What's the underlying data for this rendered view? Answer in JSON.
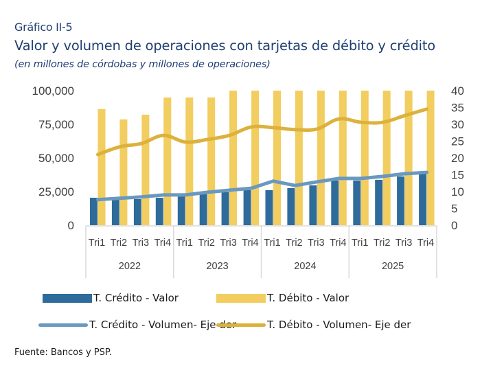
{
  "header": {
    "pretitle": "Gráfico II-5",
    "title": "Valor y volumen de operaciones con tarjetas de débito y crédito",
    "subtitle": "(en millones de córdobas y millones de operaciones)"
  },
  "source": "Fuente: Bancos y PSP.",
  "colors": {
    "credito_valor": "#2e6b9a",
    "debito_valor": "#f2cd5f",
    "credito_volumen": "#6a98bf",
    "debito_volumen": "#dcb13c",
    "title": "#1f3f73"
  },
  "chart_data": {
    "type": "bar",
    "title": "Valor y volumen de operaciones con tarjetas de débito y crédito",
    "subtitle": "(en millones de córdobas y millones de operaciones)",
    "categories": [
      "Tri1",
      "Tri2",
      "Tri3",
      "Tri4",
      "Tri1",
      "Tri2",
      "Tri3",
      "Tri4",
      "Tri1",
      "Tri2",
      "Tri3",
      "Tri4",
      "Tri1",
      "Tri2",
      "Tri3",
      "Tri4"
    ],
    "groups": [
      {
        "label": "2022",
        "count": 4
      },
      {
        "label": "2023",
        "count": 4
      },
      {
        "label": "2024",
        "count": 4
      },
      {
        "label": "2025",
        "count": 4
      }
    ],
    "y_left": {
      "min": 0,
      "max": 100000,
      "ticks": [
        0,
        25000,
        50000,
        75000,
        100000
      ],
      "tick_labels": [
        "0",
        "25,000",
        "50,000",
        "75,000",
        "100,000"
      ]
    },
    "y_right": {
      "min": 0,
      "max": 40,
      "ticks": [
        0,
        5,
        10,
        15,
        20,
        25,
        30,
        35,
        40
      ],
      "tick_labels": [
        "0",
        "5",
        "10",
        "15",
        "20",
        "25",
        "30",
        "35",
        "40"
      ]
    },
    "grid": false,
    "legend_position": "bottom",
    "series": [
      {
        "name": "T. Crédito - Valor",
        "kind": "bar",
        "axis": "left",
        "color_key": "credito_valor",
        "values": [
          20400,
          18900,
          19400,
          20400,
          21400,
          23000,
          24500,
          26000,
          26000,
          27600,
          29600,
          33200,
          33200,
          33700,
          36200,
          39300
        ]
      },
      {
        "name": "T. Débito - Valor",
        "kind": "bar",
        "axis": "left",
        "color_key": "debito_valor",
        "values": [
          86200,
          78600,
          82100,
          94900,
          94900,
          94900,
          100000,
          101000,
          101000,
          101000,
          101000,
          101000,
          101000,
          101000,
          101000,
          101000
        ]
      },
      {
        "name": "T. Crédito - Volumen- Eje der",
        "kind": "line",
        "axis": "right",
        "color_key": "credito_volumen",
        "values": [
          7.6,
          8.0,
          8.4,
          9.0,
          9.0,
          9.8,
          10.4,
          11.0,
          13.1,
          11.8,
          12.9,
          13.9,
          13.9,
          14.5,
          15.3,
          15.7
        ]
      },
      {
        "name": "T. Débito - Volumen- Eje der",
        "kind": "line",
        "axis": "right",
        "color_key": "debito_volumen",
        "values": [
          21.0,
          23.3,
          24.3,
          26.7,
          24.7,
          25.5,
          26.7,
          29.2,
          29.0,
          28.4,
          28.6,
          31.6,
          30.6,
          30.6,
          32.6,
          34.5
        ]
      }
    ]
  },
  "legend": [
    {
      "label": "T. Crédito - Valor",
      "type": "bar",
      "color_key": "credito_valor"
    },
    {
      "label": "T. Débito - Valor",
      "type": "bar",
      "color_key": "debito_valor"
    },
    {
      "label": "T. Crédito - Volumen- Eje der",
      "type": "line",
      "color_key": "credito_volumen"
    },
    {
      "label": "T. Débito - Volumen- Eje der",
      "type": "line",
      "color_key": "debito_volumen"
    }
  ]
}
